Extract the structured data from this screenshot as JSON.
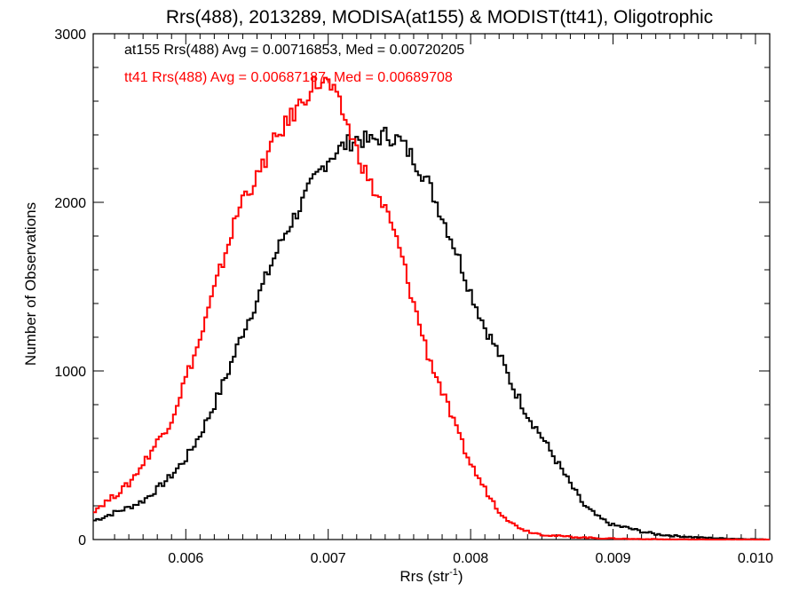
{
  "chart_data": {
    "type": "line",
    "title": "Rrs(488), 2013289, MODISA(at155) & MODIST(tt41), Oligotrophic",
    "xlabel": "Rrs (str",
    "xlabel_sup": "-1",
    "xlabel_close": ")",
    "ylabel": "Number of Observations",
    "xlim": [
      0.00535,
      0.0101
    ],
    "ylim": [
      0,
      3000
    ],
    "x_ticks": [
      0.006,
      0.007,
      0.008,
      0.009,
      0.01
    ],
    "x_tick_labels": [
      "0.006",
      "0.007",
      "0.008",
      "0.009",
      "0.010"
    ],
    "y_ticks": [
      0,
      1000,
      2000,
      3000
    ],
    "y_tick_labels": [
      "0",
      "1000",
      "2000",
      "3000"
    ],
    "grid": false,
    "annotations": [
      {
        "text": "at155 Rrs(488) Avg = 0.00716853, Med = 0.00720205",
        "color": "#000000"
      },
      {
        "text": "tt41 Rrs(488) Avg = 0.00687187, Med = 0.00689708",
        "color": "#ff0000"
      }
    ],
    "series": [
      {
        "color": "#000000",
        "x": [
          0.00535,
          0.0055,
          0.0056,
          0.0057,
          0.0058,
          0.0059,
          0.006,
          0.0061,
          0.0062,
          0.0063,
          0.0064,
          0.0065,
          0.0066,
          0.0067,
          0.0068,
          0.0069,
          0.007,
          0.0071,
          0.0072,
          0.0073,
          0.0074,
          0.0075,
          0.0076,
          0.0077,
          0.0078,
          0.0079,
          0.008,
          0.0081,
          0.0082,
          0.0083,
          0.0084,
          0.0085,
          0.0086,
          0.0087,
          0.0088,
          0.0089,
          0.009,
          0.0091,
          0.0092,
          0.0093,
          0.0094,
          0.0095,
          0.0096,
          0.0098,
          0.0101
        ],
        "y": [
          110,
          160,
          190,
          230,
          300,
          380,
          480,
          620,
          800,
          1000,
          1230,
          1420,
          1630,
          1820,
          1970,
          2130,
          2260,
          2330,
          2380,
          2360,
          2400,
          2370,
          2260,
          2120,
          1920,
          1710,
          1470,
          1260,
          1100,
          900,
          740,
          610,
          470,
          330,
          200,
          130,
          85,
          70,
          48,
          32,
          24,
          18,
          12,
          6,
          0
        ]
      },
      {
        "color": "#ff0000",
        "x": [
          0.00535,
          0.0055,
          0.0056,
          0.0057,
          0.0058,
          0.0059,
          0.006,
          0.0061,
          0.0062,
          0.0063,
          0.0064,
          0.0065,
          0.0066,
          0.0067,
          0.0068,
          0.0069,
          0.007,
          0.0071,
          0.0072,
          0.0073,
          0.0074,
          0.0075,
          0.0076,
          0.0077,
          0.0078,
          0.0079,
          0.008,
          0.0081,
          0.0082,
          0.0083,
          0.0084,
          0.0085,
          0.0086,
          0.0087,
          0.0088,
          0.0089,
          0.009,
          0.0091,
          0.0092,
          0.0093,
          0.0094,
          0.0095,
          0.0096,
          0.0098,
          0.0101
        ],
        "y": [
          170,
          260,
          330,
          450,
          580,
          710,
          960,
          1180,
          1480,
          1760,
          2030,
          2140,
          2330,
          2460,
          2580,
          2700,
          2710,
          2540,
          2310,
          2100,
          1960,
          1730,
          1400,
          1100,
          880,
          650,
          450,
          300,
          170,
          90,
          50,
          30,
          22,
          16,
          12,
          8,
          6,
          4,
          3,
          2,
          1,
          1,
          0,
          0,
          0
        ]
      }
    ]
  }
}
